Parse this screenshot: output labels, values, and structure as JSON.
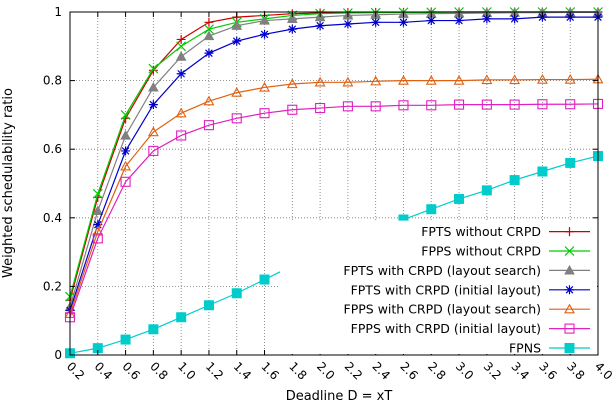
{
  "chart_data": {
    "type": "line",
    "xlabel": "Deadline D = xT",
    "ylabel": "Weighted schedulability ratio",
    "xlim": [
      0.2,
      4.0
    ],
    "ylim": [
      0,
      1
    ],
    "x_ticks": [
      "0.2",
      "0.4",
      "0.6",
      "0.8",
      "1.0",
      "1.2",
      "1.4",
      "1.6",
      "1.8",
      "2.0",
      "2.2",
      "2.4",
      "2.6",
      "2.8",
      "3.0",
      "3.2",
      "3.4",
      "3.6",
      "3.8",
      "4.0"
    ],
    "y_ticks": [
      "0",
      "0.2",
      "0.4",
      "0.6",
      "0.8",
      "1"
    ],
    "grid": true,
    "legend_position": "bottom-right",
    "x": [
      0.2,
      0.4,
      0.6,
      0.8,
      1.0,
      1.2,
      1.4,
      1.6,
      1.8,
      2.0,
      2.2,
      2.4,
      2.6,
      2.8,
      3.0,
      3.2,
      3.4,
      3.6,
      3.8,
      4.0
    ],
    "series": [
      {
        "name": "FPTS without CRPD",
        "color": "#cc0000",
        "marker": "plus",
        "values": [
          0.16,
          0.46,
          0.69,
          0.83,
          0.92,
          0.97,
          0.985,
          0.99,
          0.995,
          0.997,
          0.998,
          0.999,
          0.999,
          1.0,
          1.0,
          1.0,
          1.0,
          1.0,
          1.0,
          1.0
        ]
      },
      {
        "name": "FPPS without CRPD",
        "color": "#00cc00",
        "marker": "cross",
        "values": [
          0.17,
          0.47,
          0.7,
          0.835,
          0.9,
          0.95,
          0.97,
          0.98,
          0.99,
          0.995,
          0.997,
          0.998,
          0.999,
          0.999,
          1.0,
          1.0,
          1.0,
          1.0,
          1.0,
          1.0
        ]
      },
      {
        "name": "FPTS with CRPD (layout search)",
        "color": "#808080",
        "marker": "triangle",
        "values": [
          0.14,
          0.42,
          0.64,
          0.78,
          0.87,
          0.93,
          0.96,
          0.975,
          0.98,
          0.985,
          0.99,
          0.992,
          0.994,
          0.995,
          0.996,
          0.997,
          0.998,
          0.998,
          0.999,
          0.999
        ]
      },
      {
        "name": "FPTS with CRPD (initial layout)",
        "color": "#0000cc",
        "marker": "asterisk",
        "values": [
          0.13,
          0.38,
          0.595,
          0.73,
          0.82,
          0.88,
          0.915,
          0.935,
          0.95,
          0.96,
          0.965,
          0.97,
          0.97,
          0.975,
          0.975,
          0.98,
          0.98,
          0.985,
          0.985,
          0.985
        ]
      },
      {
        "name": "FPPS with CRPD (layout search)",
        "color": "#e06010",
        "marker": "open-triangle",
        "values": [
          0.12,
          0.36,
          0.55,
          0.65,
          0.705,
          0.74,
          0.765,
          0.78,
          0.79,
          0.795,
          0.795,
          0.798,
          0.8,
          0.8,
          0.8,
          0.802,
          0.802,
          0.803,
          0.803,
          0.804
        ]
      },
      {
        "name": "FPPS with CRPD (initial layout)",
        "color": "#e020c0",
        "marker": "open-square",
        "values": [
          0.11,
          0.34,
          0.505,
          0.595,
          0.64,
          0.67,
          0.69,
          0.705,
          0.715,
          0.72,
          0.725,
          0.725,
          0.728,
          0.728,
          0.73,
          0.73,
          0.73,
          0.731,
          0.731,
          0.732
        ]
      },
      {
        "name": "FPNS",
        "color": "#00cccc",
        "marker": "filled-square",
        "values": [
          0.005,
          0.02,
          0.045,
          0.075,
          0.11,
          0.145,
          0.18,
          0.22,
          0.26,
          0.295,
          0.33,
          0.365,
          0.395,
          0.425,
          0.455,
          0.48,
          0.51,
          0.535,
          0.56,
          0.58
        ]
      }
    ]
  }
}
